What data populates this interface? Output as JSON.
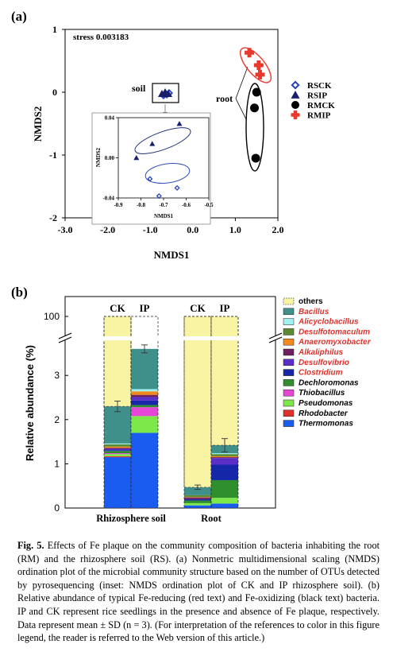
{
  "chart_data": [
    {
      "panel": "(a)",
      "type": "scatter",
      "xlabel": "NMDS1",
      "ylabel": "NMDS2",
      "xlim": [
        -3.0,
        2.0
      ],
      "ylim": [
        -2,
        1
      ],
      "xticks": [
        "-3.0",
        "-2.0",
        "-1.0",
        "0.0",
        "1.0",
        "2.0"
      ],
      "yticks": [
        "1",
        "0",
        "-1",
        "-2"
      ],
      "stress_label": "stress 0.003183",
      "annotations": {
        "soil": "soil",
        "root": "root"
      },
      "legend_position": "right",
      "series": [
        {
          "name": "RSCK",
          "marker": "diamond-open",
          "color": "#1f3fbf",
          "points": [
            [
              -0.78,
              0.02
            ],
            [
              -0.74,
              -0.01
            ],
            [
              -0.66,
              0.0
            ]
          ]
        },
        {
          "name": "RSIP",
          "marker": "triangle",
          "color": "#17206b",
          "points": [
            [
              -0.8,
              0.0
            ],
            [
              -0.75,
              0.01
            ],
            [
              -0.64,
              0.02
            ]
          ]
        },
        {
          "name": "RMCK",
          "marker": "circle",
          "color": "#000000",
          "points": [
            [
              1.5,
              0.0
            ],
            [
              1.45,
              -0.25
            ],
            [
              1.48,
              -1.05
            ]
          ]
        },
        {
          "name": "RMIP",
          "marker": "cross",
          "color": "#e8392c",
          "points": [
            [
              1.33,
              0.63
            ],
            [
              1.55,
              0.43
            ],
            [
              1.58,
              0.28
            ]
          ]
        }
      ],
      "inset": {
        "xlabel": "NMDS1",
        "ylabel": "NMDS2",
        "xlim": [
          -0.9,
          -0.5
        ],
        "ylim": [
          -0.04,
          0.04
        ],
        "xticks": [
          "-0.9",
          "-0.8",
          "-0.7",
          "-0.6",
          "-0.5"
        ],
        "yticks": [
          "0.04",
          "0.00",
          "-0.04"
        ],
        "series": [
          {
            "name": "RSIP",
            "points": [
              [
                -0.82,
                0.0
              ],
              [
                -0.75,
                0.014
              ],
              [
                -0.63,
                0.034
              ]
            ]
          },
          {
            "name": "RSCK",
            "points": [
              [
                -0.76,
                -0.021
              ],
              [
                -0.72,
                -0.038
              ],
              [
                -0.64,
                -0.03
              ]
            ]
          }
        ]
      }
    },
    {
      "panel": "(b)",
      "type": "bar",
      "stacked": true,
      "ylabel": "Relative abundance (%)",
      "ylim": [
        0,
        3.6
      ],
      "ybreak_tick": "100",
      "yticks": [
        "0",
        "1",
        "2",
        "3"
      ],
      "groups": [
        "Rhizosphere soil",
        "Root"
      ],
      "categories": [
        "CK",
        "IP",
        "CK",
        "IP"
      ],
      "legend_position": "right",
      "series": [
        {
          "name": "Thermomonas",
          "color": "#1b5cf0",
          "red_text": false,
          "values": [
            1.15,
            1.7,
            0.06,
            0.1
          ]
        },
        {
          "name": "Rhodobacter",
          "color": "#e0302a",
          "red_text": false,
          "values": [
            0.02,
            0.0,
            0.0,
            0.0
          ]
        },
        {
          "name": "Pseudomonas",
          "color": "#7de84a",
          "red_text": false,
          "values": [
            0.05,
            0.38,
            0.05,
            0.13
          ]
        },
        {
          "name": "Thiobacillus",
          "color": "#e646d6",
          "red_text": false,
          "values": [
            0.02,
            0.2,
            0.0,
            0.0
          ]
        },
        {
          "name": "Dechloromonas",
          "color": "#2e8f2c",
          "red_text": false,
          "values": [
            0.05,
            0.05,
            0.06,
            0.4
          ]
        },
        {
          "name": "Clostridium",
          "color": "#1626a8",
          "red_text": true,
          "values": [
            0.02,
            0.1,
            0.03,
            0.35
          ]
        },
        {
          "name": "Desulfovibrio",
          "color": "#5a2fc8",
          "red_text": true,
          "values": [
            0.03,
            0.08,
            0.0,
            0.15
          ]
        },
        {
          "name": "Alkaliphilus",
          "color": "#6e1f5e",
          "red_text": true,
          "values": [
            0.02,
            0.05,
            0.04,
            0.02
          ]
        },
        {
          "name": "Anaeromyxobacter",
          "color": "#f08a1e",
          "red_text": true,
          "values": [
            0.03,
            0.08,
            0.01,
            0.02
          ]
        },
        {
          "name": "Desulfotomaculum",
          "color": "#5b8a32",
          "red_text": true,
          "values": [
            0.05,
            0.0,
            0.04,
            0.05
          ]
        },
        {
          "name": "Alicyclobacillus",
          "color": "#9ff0ee",
          "red_text": true,
          "values": [
            0.02,
            0.05,
            0.0,
            0.02
          ]
        },
        {
          "name": "Bacillus",
          "color": "#3f8f8b",
          "red_text": true,
          "values": [
            0.84,
            0.91,
            0.18,
            0.18
          ]
        },
        {
          "name": "others",
          "color": "#f9f3a4",
          "red_text": false,
          "values": [
            1.3,
            0.0,
            3.19,
            2.18
          ]
        }
      ],
      "error_bars": [
        0.12,
        0.09,
        0.05,
        0.15
      ]
    }
  ],
  "caption": {
    "label": "Fig. 5.",
    "text": "Effects of Fe plaque on the community composition of bacteria inhabiting the root (RM) and the rhizosphere soil (RS). (a) Nonmetric multidimensional scaling (NMDS) ordination plot of the microbial community structure based on the number of OTUs detected by pyrosequencing (inset: NMDS ordination plot of CK and IP rhizosphere soil). (b) Relative abundance of typical Fe-reducing (red text) and Fe-oxidizing (black text) bacteria. IP and CK represent rice seedlings in the presence and absence of Fe plaque, respectively. Data represent mean ± SD (n = 3). (For interpretation of the references to color in this figure legend, the reader is referred to the Web version of this article.)"
  }
}
